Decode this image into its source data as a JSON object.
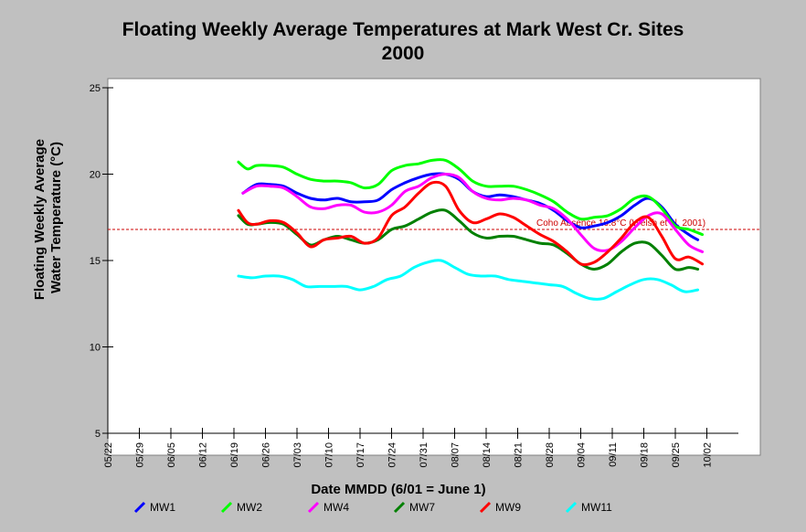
{
  "title": "Floating Weekly Average Temperatures at Mark West Cr. Sites",
  "subtitle": "2000",
  "chart_data": {
    "type": "line",
    "title": "Floating Weekly Average Temperatures at Mark West Cr. Sites",
    "subtitle": "2000",
    "xlabel": "Date MMDD (6/01 = June 1)",
    "ylabel": "Floating Weekly Average Water Temperature (°C)",
    "ylim": [
      5,
      25
    ],
    "yticks": [
      5,
      10,
      15,
      20,
      25
    ],
    "x_tick_labels": [
      "05/22",
      "05/29",
      "06/05",
      "06/12",
      "06/19",
      "06/26",
      "07/03",
      "07/10",
      "07/17",
      "07/24",
      "07/31",
      "08/07",
      "08/14",
      "08/21",
      "08/28",
      "09/04",
      "09/11",
      "09/18",
      "09/25",
      "10/02"
    ],
    "x_range_days": [
      0,
      140
    ],
    "background": "#ffffff",
    "grid": false,
    "legend_position": "bottom",
    "reference_line": {
      "y": 16.8,
      "label": "Coho Absence 16.8°C (Welsh et al. 2001)",
      "color": "#cc0000"
    },
    "series": [
      {
        "name": "MW1",
        "color": "#0000ff",
        "x": [
          30,
          33,
          36,
          39,
          42,
          45,
          48,
          51,
          54,
          57,
          60,
          63,
          66,
          69,
          72,
          75,
          78,
          81,
          84,
          87,
          90,
          93,
          96,
          99,
          102,
          105,
          108,
          111,
          114,
          117,
          120,
          123,
          126,
          129,
          131
        ],
        "y": [
          18.9,
          19.4,
          19.4,
          19.3,
          18.9,
          18.6,
          18.5,
          18.6,
          18.4,
          18.4,
          18.5,
          19.1,
          19.5,
          19.8,
          20.0,
          20.0,
          19.7,
          19.0,
          18.7,
          18.8,
          18.7,
          18.5,
          18.3,
          17.9,
          17.3,
          16.9,
          17.0,
          17.2,
          17.6,
          18.2,
          18.6,
          18.1,
          17.1,
          16.5,
          16.2
        ]
      },
      {
        "name": "MW2",
        "color": "#00ff00",
        "x": [
          29,
          31,
          33,
          36,
          39,
          42,
          45,
          48,
          51,
          54,
          57,
          60,
          63,
          66,
          69,
          72,
          75,
          78,
          81,
          84,
          87,
          90,
          93,
          96,
          99,
          102,
          105,
          108,
          111,
          114,
          117,
          120,
          123,
          126,
          129,
          132
        ],
        "y": [
          20.7,
          20.3,
          20.5,
          20.5,
          20.4,
          20.0,
          19.7,
          19.6,
          19.6,
          19.5,
          19.2,
          19.4,
          20.2,
          20.5,
          20.6,
          20.8,
          20.8,
          20.3,
          19.6,
          19.3,
          19.3,
          19.3,
          19.1,
          18.8,
          18.4,
          17.8,
          17.4,
          17.5,
          17.6,
          18.0,
          18.6,
          18.7,
          18.0,
          17.0,
          16.8,
          16.5
        ]
      },
      {
        "name": "MW4",
        "color": "#ff00ff",
        "x": [
          30,
          33,
          36,
          39,
          42,
          45,
          48,
          51,
          54,
          57,
          60,
          63,
          66,
          69,
          72,
          75,
          78,
          81,
          84,
          87,
          90,
          93,
          96,
          99,
          102,
          105,
          108,
          111,
          114,
          117,
          120,
          123,
          126,
          129,
          132
        ],
        "y": [
          18.9,
          19.3,
          19.3,
          19.2,
          18.7,
          18.1,
          18.0,
          18.2,
          18.2,
          17.8,
          17.8,
          18.2,
          19.0,
          19.3,
          19.8,
          20.0,
          19.8,
          19.0,
          18.6,
          18.5,
          18.6,
          18.5,
          18.2,
          18.0,
          17.4,
          16.5,
          15.7,
          15.6,
          16.1,
          16.9,
          17.6,
          17.7,
          16.8,
          15.9,
          15.5
        ]
      },
      {
        "name": "MW7",
        "color": "#008000",
        "x": [
          29,
          31,
          33,
          36,
          39,
          42,
          45,
          48,
          51,
          54,
          57,
          60,
          63,
          66,
          69,
          72,
          75,
          78,
          81,
          84,
          87,
          90,
          93,
          96,
          99,
          102,
          105,
          108,
          111,
          114,
          117,
          120,
          123,
          126,
          129,
          131
        ],
        "y": [
          17.6,
          17.1,
          17.1,
          17.2,
          17.1,
          16.5,
          15.9,
          16.2,
          16.4,
          16.2,
          16.0,
          16.2,
          16.8,
          17.0,
          17.4,
          17.8,
          17.9,
          17.3,
          16.6,
          16.3,
          16.4,
          16.4,
          16.2,
          16.0,
          15.9,
          15.4,
          14.8,
          14.5,
          14.8,
          15.5,
          16.0,
          16.0,
          15.3,
          14.5,
          14.6,
          14.5
        ]
      },
      {
        "name": "MW9",
        "color": "#ff0000",
        "x": [
          29,
          31,
          33,
          36,
          39,
          42,
          45,
          48,
          51,
          54,
          57,
          60,
          63,
          66,
          69,
          72,
          75,
          78,
          81,
          84,
          87,
          90,
          93,
          96,
          99,
          102,
          105,
          108,
          111,
          114,
          117,
          120,
          123,
          126,
          129,
          132
        ],
        "y": [
          17.9,
          17.2,
          17.1,
          17.3,
          17.2,
          16.6,
          15.8,
          16.2,
          16.3,
          16.4,
          16.0,
          16.3,
          17.6,
          18.1,
          18.9,
          19.5,
          19.3,
          17.9,
          17.2,
          17.4,
          17.7,
          17.5,
          17.0,
          16.5,
          16.1,
          15.5,
          14.8,
          14.9,
          15.5,
          16.3,
          17.2,
          17.5,
          16.4,
          15.1,
          15.2,
          14.8
        ]
      },
      {
        "name": "MW11",
        "color": "#00ffff",
        "x": [
          29,
          32,
          35,
          38,
          41,
          44,
          47,
          50,
          53,
          56,
          59,
          62,
          65,
          68,
          71,
          74,
          77,
          80,
          83,
          86,
          89,
          92,
          95,
          98,
          101,
          104,
          107,
          110,
          113,
          116,
          119,
          122,
          125,
          128,
          131
        ],
        "y": [
          14.1,
          14.0,
          14.1,
          14.1,
          13.9,
          13.5,
          13.5,
          13.5,
          13.5,
          13.3,
          13.5,
          13.9,
          14.1,
          14.6,
          14.9,
          15.0,
          14.6,
          14.2,
          14.1,
          14.1,
          13.9,
          13.8,
          13.7,
          13.6,
          13.5,
          13.1,
          12.8,
          12.8,
          13.2,
          13.6,
          13.9,
          13.9,
          13.6,
          13.2,
          13.3
        ]
      }
    ]
  }
}
